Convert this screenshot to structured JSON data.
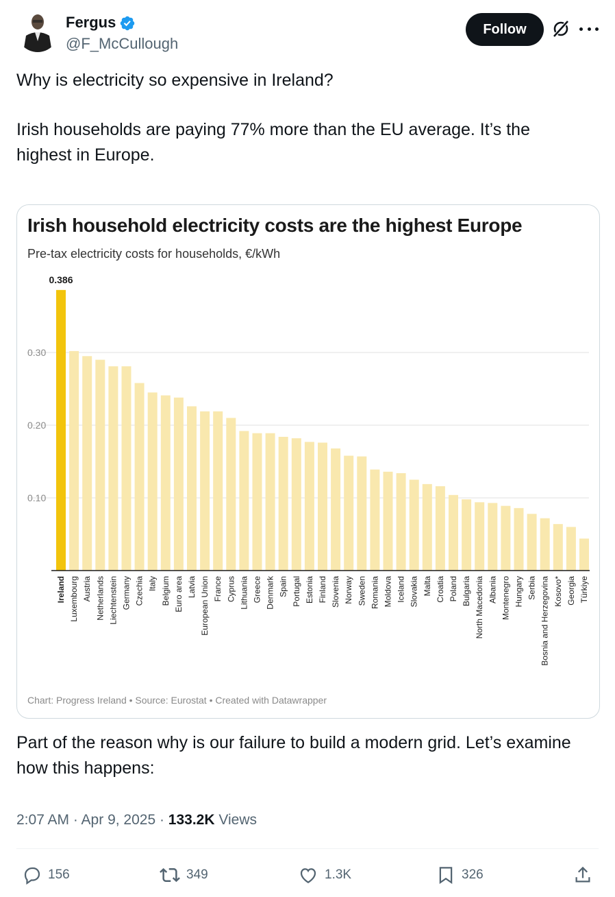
{
  "author": {
    "name": "Fergus",
    "handle": "@F_McCullough",
    "verified": true,
    "avatar_icon": "profile-photo"
  },
  "header": {
    "follow_label": "Follow",
    "grok_icon": "grok-icon",
    "more_icon": "more-icon"
  },
  "tweet": {
    "line1": "Why is electricity so expensive in Ireland?",
    "line2": "Irish households are paying 77% more than the EU average. It’s the highest in Europe.",
    "line3": "Part of the reason why is our failure to build a modern grid. Let’s examine how this happens:"
  },
  "meta": {
    "time": "2:07 AM · Apr 9, 2025 · ",
    "views_count": "133.2K",
    "views_label": " Views"
  },
  "actions": {
    "replies": "156",
    "reposts": "349",
    "likes": "1.3K",
    "bookmarks": "326"
  },
  "colors": {
    "highlight_bar": "#f2c40c",
    "other_bars": "#f9e8ae",
    "follow_bg": "#0f1419",
    "verified": "#1d9bf0"
  },
  "chart_data": {
    "type": "bar",
    "title": "Irish household electricity costs are the highest Europe",
    "subtitle": "Pre-tax electricity costs for households, €/kWh",
    "footer": "Chart: Progress Ireland • Source: Eurostat • Created with Datawrapper",
    "highlight_label": "0.386",
    "ylim": [
      0,
      0.4
    ],
    "yticks": [
      "0.10",
      "0.20",
      "0.30"
    ],
    "grid": true,
    "categories": [
      "Ireland",
      "Luxembourg",
      "Austria",
      "Netherlands",
      "Liechtenstein",
      "Germany",
      "Czechia",
      "Italy",
      "Belgium",
      "Euro area",
      "Latvia",
      "European Union",
      "France",
      "Cyprus",
      "Lithuania",
      "Greece",
      "Denmark",
      "Spain",
      "Portugal",
      "Estonia",
      "Finland",
      "Slovenia",
      "Norway",
      "Sweden",
      "Romania",
      "Moldova",
      "Iceland",
      "Slovakia",
      "Malta",
      "Croatia",
      "Poland",
      "Bulgaria",
      "North Macedonia",
      "Albania",
      "Montenegro",
      "Hungary",
      "Serbia",
      "Bosnia and Herzegovina",
      "Kosovo*",
      "Georgia",
      "Türkiye"
    ],
    "values": [
      0.386,
      0.302,
      0.295,
      0.29,
      0.281,
      0.281,
      0.258,
      0.245,
      0.241,
      0.238,
      0.226,
      0.219,
      0.219,
      0.21,
      0.192,
      0.189,
      0.189,
      0.184,
      0.182,
      0.177,
      0.176,
      0.168,
      0.158,
      0.157,
      0.139,
      0.136,
      0.134,
      0.125,
      0.119,
      0.116,
      0.104,
      0.098,
      0.094,
      0.093,
      0.089,
      0.086,
      0.078,
      0.072,
      0.064,
      0.06,
      0.044
    ]
  }
}
